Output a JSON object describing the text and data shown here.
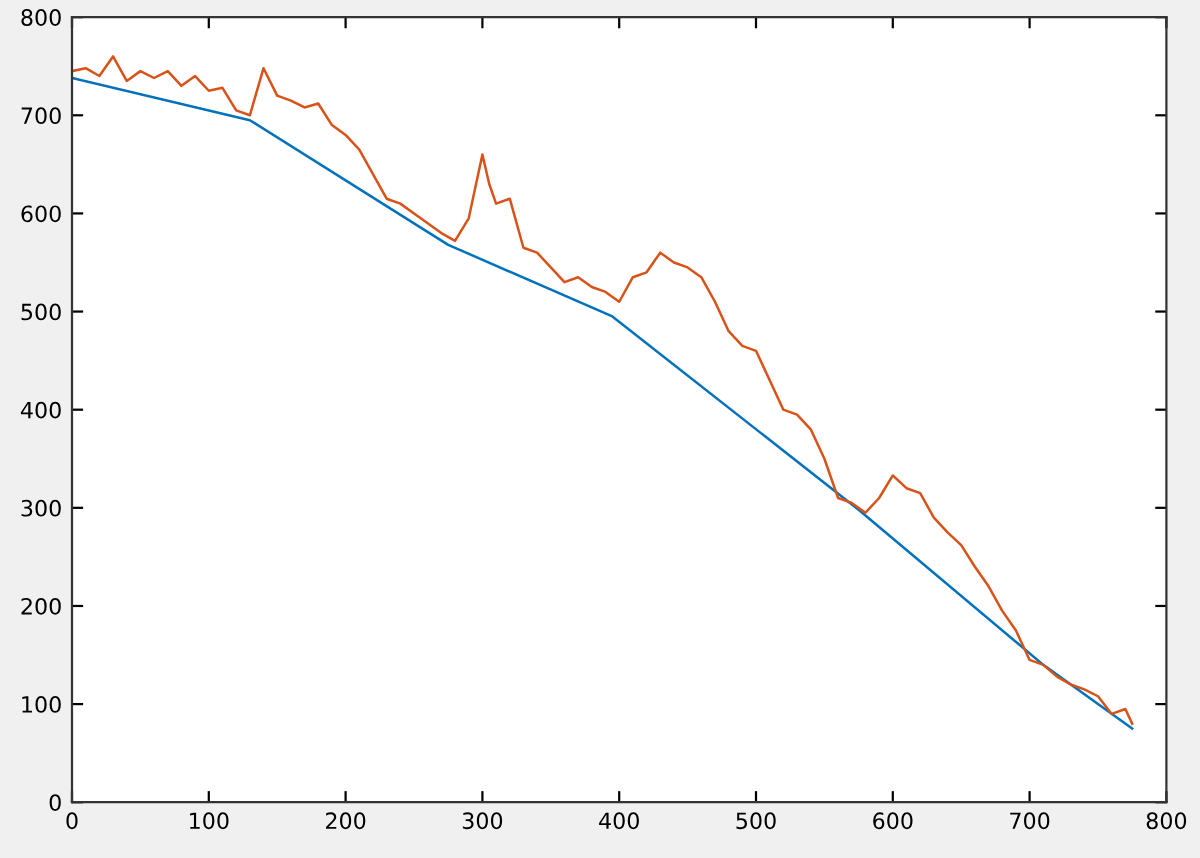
{
  "chart_data": {
    "type": "line",
    "xlim": [
      0,
      800
    ],
    "ylim": [
      0,
      800
    ],
    "xticks": [
      0,
      100,
      200,
      300,
      400,
      500,
      600,
      700,
      800
    ],
    "yticks": [
      0,
      100,
      200,
      300,
      400,
      500,
      600,
      700,
      800
    ],
    "grid": false,
    "legend": false,
    "series": [
      {
        "color": "#0072bd",
        "x": [
          0,
          130,
          275,
          395,
          575,
          710,
          775
        ],
        "values": [
          738,
          695,
          568,
          495,
          298,
          140,
          75
        ]
      },
      {
        "color": "#d95319",
        "x": [
          0,
          10,
          20,
          30,
          40,
          50,
          60,
          70,
          80,
          90,
          100,
          110,
          120,
          130,
          140,
          150,
          160,
          170,
          180,
          190,
          200,
          210,
          220,
          230,
          240,
          250,
          260,
          270,
          280,
          290,
          300,
          305,
          310,
          320,
          330,
          340,
          350,
          360,
          370,
          380,
          390,
          400,
          410,
          420,
          430,
          440,
          450,
          460,
          470,
          480,
          490,
          500,
          510,
          520,
          530,
          540,
          550,
          560,
          570,
          580,
          590,
          600,
          610,
          620,
          630,
          640,
          650,
          660,
          670,
          680,
          690,
          700,
          710,
          720,
          730,
          740,
          750,
          760,
          770,
          775
        ],
        "values": [
          745,
          748,
          740,
          760,
          735,
          745,
          738,
          745,
          730,
          740,
          725,
          728,
          705,
          700,
          748,
          720,
          715,
          708,
          712,
          690,
          680,
          665,
          640,
          615,
          610,
          600,
          590,
          580,
          572,
          595,
          660,
          630,
          610,
          615,
          565,
          560,
          545,
          530,
          535,
          525,
          520,
          510,
          535,
          540,
          560,
          550,
          545,
          535,
          510,
          480,
          465,
          460,
          430,
          400,
          395,
          380,
          350,
          310,
          305,
          295,
          310,
          333,
          320,
          315,
          290,
          275,
          262,
          240,
          220,
          195,
          175,
          145,
          140,
          128,
          120,
          115,
          108,
          90,
          95,
          80
        ]
      }
    ]
  }
}
